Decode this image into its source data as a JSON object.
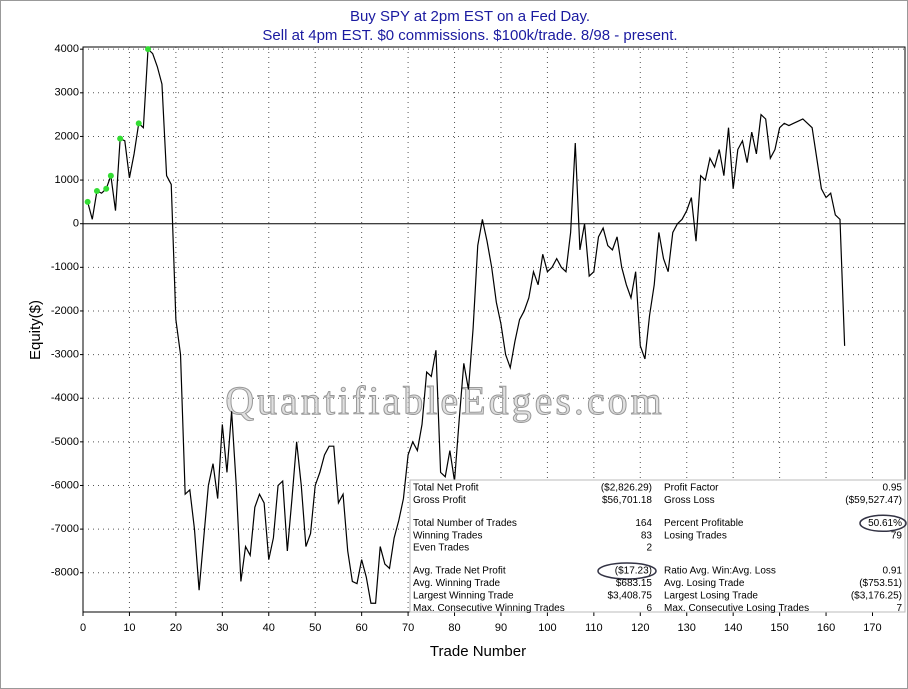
{
  "chart_data": {
    "type": "line",
    "title": "Buy SPY at 2pm EST on a Fed Day.",
    "subtitle": "Sell at 4pm EST. $0 commissions. $100k/trade. 8/98 - present.",
    "xlabel": "Trade Number",
    "ylabel": "Equity($)",
    "watermark": "QuantifiableEdges.com",
    "color": "#000000",
    "high_marker_color": "#33dd33",
    "grid": true,
    "xlim": [
      0,
      177
    ],
    "ylim": [
      -8900,
      4050
    ],
    "xticks": [
      0,
      10,
      20,
      30,
      40,
      50,
      60,
      70,
      80,
      90,
      100,
      110,
      120,
      130,
      140,
      150,
      160,
      170
    ],
    "yticks": [
      -8000,
      -7000,
      -6000,
      -5000,
      -4000,
      -3000,
      -2000,
      -1000,
      0,
      1000,
      2000,
      3000,
      4000
    ],
    "x": [
      1,
      2,
      3,
      4,
      5,
      6,
      7,
      8,
      9,
      10,
      11,
      12,
      13,
      14,
      15,
      16,
      17,
      18,
      19,
      20,
      21,
      22,
      23,
      24,
      25,
      26,
      27,
      28,
      29,
      30,
      31,
      32,
      33,
      34,
      35,
      36,
      37,
      38,
      39,
      40,
      41,
      42,
      43,
      44,
      45,
      46,
      47,
      48,
      49,
      50,
      51,
      52,
      53,
      54,
      55,
      56,
      57,
      58,
      59,
      60,
      61,
      62,
      63,
      64,
      65,
      66,
      67,
      68,
      69,
      70,
      71,
      72,
      73,
      74,
      75,
      76,
      77,
      78,
      79,
      80,
      81,
      82,
      83,
      84,
      85,
      86,
      87,
      88,
      89,
      90,
      91,
      92,
      93,
      94,
      95,
      96,
      97,
      98,
      99,
      100,
      101,
      102,
      103,
      104,
      105,
      106,
      107,
      108,
      109,
      110,
      111,
      112,
      113,
      114,
      115,
      116,
      117,
      118,
      119,
      120,
      121,
      122,
      123,
      124,
      125,
      126,
      127,
      128,
      129,
      130,
      131,
      132,
      133,
      134,
      135,
      136,
      137,
      138,
      139,
      140,
      141,
      142,
      143,
      144,
      145,
      146,
      147,
      148,
      149,
      150,
      151,
      152,
      153,
      154,
      155,
      156,
      157,
      158,
      159,
      160,
      161,
      162,
      163,
      164
    ],
    "values": [
      500,
      100,
      750,
      700,
      800,
      1100,
      300,
      1950,
      1900,
      1050,
      1600,
      2300,
      2200,
      4000,
      3900,
      3600,
      3200,
      1100,
      900,
      -2200,
      -3000,
      -6200,
      -6100,
      -7000,
      -8400,
      -7200,
      -6000,
      -5500,
      -6300,
      -4600,
      -5700,
      -4300,
      -6000,
      -8200,
      -7400,
      -7600,
      -6500,
      -6200,
      -6400,
      -7700,
      -7200,
      -6000,
      -5900,
      -7500,
      -6300,
      -5000,
      -6000,
      -7400,
      -7100,
      -6000,
      -5700,
      -5300,
      -5100,
      -5100,
      -6400,
      -6200,
      -7500,
      -8200,
      -8250,
      -7700,
      -8100,
      -8700,
      -8700,
      -7400,
      -7800,
      -7900,
      -7200,
      -6800,
      -6300,
      -5300,
      -5000,
      -5200,
      -4600,
      -3400,
      -3500,
      -2900,
      -5700,
      -5800,
      -5200,
      -5900,
      -4500,
      -3200,
      -3800,
      -2400,
      -500,
      100,
      -400,
      -1000,
      -1800,
      -2300,
      -3000,
      -3300,
      -2700,
      -2200,
      -2000,
      -1700,
      -1100,
      -1400,
      -700,
      -1100,
      -1000,
      -800,
      -1000,
      -1100,
      -200,
      1850,
      -600,
      0,
      -1200,
      -1100,
      -300,
      -100,
      -500,
      -600,
      -300,
      -1000,
      -1400,
      -1700,
      -1100,
      -2800,
      -3100,
      -2100,
      -1400,
      -200,
      -800,
      -1100,
      -200,
      0,
      100,
      300,
      600,
      -400,
      1100,
      1000,
      1500,
      1300,
      1700,
      1100,
      2200,
      800,
      1700,
      1900,
      1400,
      2100,
      1600,
      2500,
      2400,
      1500,
      1700,
      2200,
      2300,
      2250,
      2300,
      2350,
      2400,
      2300,
      2200,
      1500,
      800,
      600,
      700,
      200,
      100,
      -2800
    ]
  },
  "stats_table": {
    "negative_color": "#ff3333",
    "groups": [
      [
        [
          {
            "text": "Total Net Profit"
          },
          {
            "text": "($2,826.29)",
            "negative": true
          },
          {
            "text": "Profit Factor"
          },
          {
            "text": "0.95"
          }
        ],
        [
          {
            "text": "Gross Profit"
          },
          {
            "text": "$56,701.18"
          },
          {
            "text": "Gross Loss"
          },
          {
            "text": "($59,527.47)",
            "negative": true
          }
        ]
      ],
      [
        [
          {
            "text": "Total Number of Trades"
          },
          {
            "text": "164"
          },
          {
            "text": "Percent Profitable"
          },
          {
            "text": "50.61%",
            "circled": true
          }
        ],
        [
          {
            "text": "Winning Trades"
          },
          {
            "text": "83"
          },
          {
            "text": "Losing Trades"
          },
          {
            "text": "79"
          }
        ],
        [
          {
            "text": "Even Trades"
          },
          {
            "text": "2"
          }
        ]
      ],
      [
        [
          {
            "text": "Avg. Trade Net Profit"
          },
          {
            "text": "($17.23)",
            "negative": true,
            "circled": true
          },
          {
            "text": "Ratio Avg. Win:Avg. Loss"
          },
          {
            "text": "0.91"
          }
        ],
        [
          {
            "text": "Avg. Winning Trade"
          },
          {
            "text": "$683.15"
          },
          {
            "text": "Avg. Losing Trade"
          },
          {
            "text": "($753.51)",
            "negative": true
          }
        ],
        [
          {
            "text": "Largest Winning Trade"
          },
          {
            "text": "$3,408.75"
          },
          {
            "text": "Largest Losing Trade"
          },
          {
            "text": "($3,176.25)",
            "negative": true
          }
        ],
        [
          {
            "text": "Max. Consecutive Winning Trades"
          },
          {
            "text": "6"
          },
          {
            "text": "Max. Consecutive Losing Trades"
          },
          {
            "text": "7"
          }
        ]
      ]
    ]
  }
}
